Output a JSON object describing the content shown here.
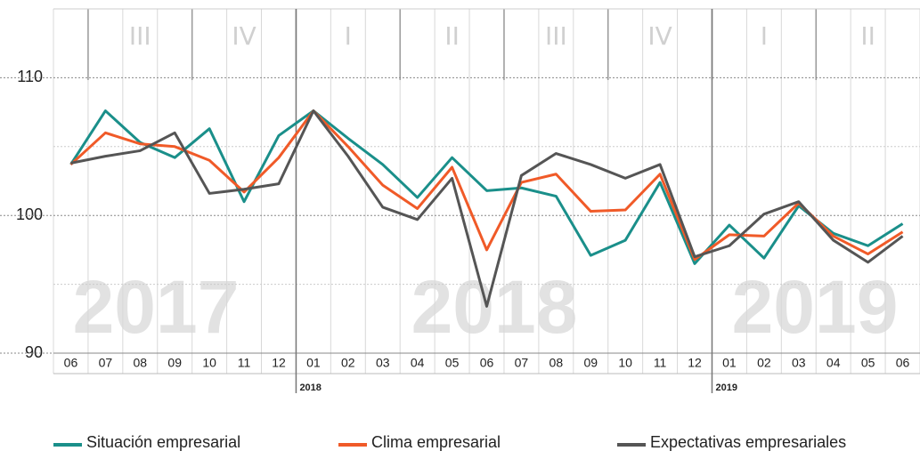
{
  "chart_data": {
    "type": "line",
    "categories": [
      "06",
      "07",
      "08",
      "09",
      "10",
      "11",
      "12",
      "01",
      "02",
      "03",
      "04",
      "05",
      "06",
      "07",
      "08",
      "09",
      "10",
      "11",
      "12",
      "01",
      "02",
      "03",
      "04",
      "05",
      "06"
    ],
    "x_sublabels": [
      null,
      null,
      null,
      null,
      null,
      null,
      null,
      "2018",
      null,
      null,
      null,
      null,
      null,
      null,
      null,
      null,
      null,
      null,
      null,
      "2019",
      null,
      null,
      null,
      null,
      null
    ],
    "quarters": [
      "III",
      "IV",
      "I",
      "II",
      "III",
      "IV",
      "I",
      "II"
    ],
    "year_watermarks": [
      "2017",
      "2018",
      "2019"
    ],
    "series": [
      {
        "name": "Situación empresarial",
        "color": "#1a8f8a",
        "values": [
          103.7,
          107.6,
          105.3,
          104.2,
          106.3,
          101.0,
          105.8,
          107.6,
          105.6,
          103.7,
          101.3,
          104.2,
          101.8,
          102.0,
          101.4,
          97.1,
          98.2,
          102.4,
          96.5,
          99.3,
          96.9,
          100.7,
          98.7,
          97.8,
          99.4
        ]
      },
      {
        "name": "Clima empresarial",
        "color": "#f05a28",
        "values": [
          103.7,
          106.0,
          105.2,
          105.0,
          104.0,
          101.7,
          104.2,
          107.6,
          105.0,
          102.2,
          100.5,
          103.5,
          97.5,
          102.4,
          103.0,
          100.3,
          100.4,
          103.0,
          96.8,
          98.6,
          98.5,
          100.9,
          98.5,
          97.2,
          98.8
        ]
      },
      {
        "name": "Expectativas empresariales",
        "color": "#555555",
        "values": [
          103.8,
          104.3,
          104.7,
          106.0,
          101.6,
          101.9,
          102.3,
          107.6,
          104.3,
          100.6,
          99.7,
          102.7,
          93.4,
          102.9,
          104.5,
          103.7,
          102.7,
          103.7,
          97.0,
          97.8,
          100.1,
          101.0,
          98.2,
          96.6,
          98.5
        ]
      }
    ],
    "ylim": [
      90,
      115
    ],
    "yticks": [
      90,
      100,
      110
    ],
    "minor_gridlines": [
      95,
      105
    ],
    "grid": true
  }
}
